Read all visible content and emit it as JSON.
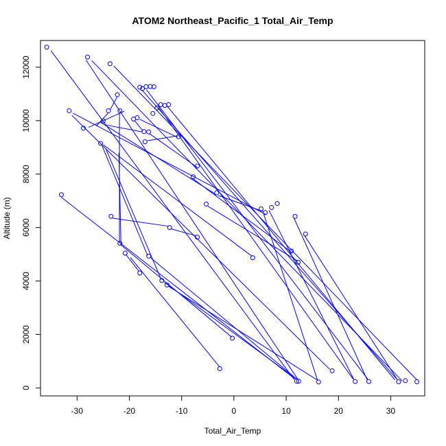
{
  "chart_data": {
    "type": "scatter",
    "title": "ATOM2 Northeast_Pacific_1 Total_Air_Temp",
    "xlabel": "Total_Air_Temp",
    "ylabel": "Altitude (m)",
    "xlim": [
      -37,
      36.5
    ],
    "ylim": [
      -300,
      13000
    ],
    "x_ticks": [
      -30,
      -20,
      -10,
      0,
      10,
      20,
      30
    ],
    "x_tick_labels": [
      "-30",
      "-20",
      "-10",
      "0",
      "10",
      "20",
      "30"
    ],
    "y_ticks": [
      0,
      2000,
      4000,
      6000,
      8000,
      10000,
      12000
    ],
    "y_tick_labels": [
      "0",
      "2000",
      "4000",
      "6000",
      "8000",
      "10000",
      "12000"
    ],
    "series_color": "#0000ff",
    "grid": false,
    "legend": "none",
    "points": [
      {
        "x": -35.8,
        "y": 12750
      },
      {
        "x": -28.0,
        "y": 12380
      },
      {
        "x": -23.7,
        "y": 12130
      },
      {
        "x": -18.0,
        "y": 11250
      },
      {
        "x": -17.5,
        "y": 11200
      },
      {
        "x": -16.8,
        "y": 11270
      },
      {
        "x": -16.0,
        "y": 11280
      },
      {
        "x": -15.3,
        "y": 11270
      },
      {
        "x": -14.0,
        "y": 10600
      },
      {
        "x": -13.2,
        "y": 10570
      },
      {
        "x": -12.5,
        "y": 10600
      },
      {
        "x": -14.7,
        "y": 10480
      },
      {
        "x": -15.5,
        "y": 10270
      },
      {
        "x": -22.3,
        "y": 10970
      },
      {
        "x": -21.8,
        "y": 10370
      },
      {
        "x": -24.0,
        "y": 10370
      },
      {
        "x": -31.5,
        "y": 10370
      },
      {
        "x": -18.5,
        "y": 10110
      },
      {
        "x": -19.2,
        "y": 10060
      },
      {
        "x": -25.0,
        "y": 9990
      },
      {
        "x": -28.8,
        "y": 9720
      },
      {
        "x": -17.2,
        "y": 9590
      },
      {
        "x": -16.3,
        "y": 9580
      },
      {
        "x": -10.6,
        "y": 9400
      },
      {
        "x": -17.0,
        "y": 9210
      },
      {
        "x": -25.5,
        "y": 9150
      },
      {
        "x": -7.0,
        "y": 8300
      },
      {
        "x": -7.8,
        "y": 7900
      },
      {
        "x": -3.3,
        "y": 7300
      },
      {
        "x": -5.3,
        "y": 6880
      },
      {
        "x": 8.3,
        "y": 6900
      },
      {
        "x": 7.2,
        "y": 6750
      },
      {
        "x": 5.2,
        "y": 6700
      },
      {
        "x": 6.0,
        "y": 6560
      },
      {
        "x": 11.7,
        "y": 6420
      },
      {
        "x": -33.0,
        "y": 7230
      },
      {
        "x": -23.5,
        "y": 6420
      },
      {
        "x": -12.3,
        "y": 6000
      },
      {
        "x": 13.7,
        "y": 5760
      },
      {
        "x": -7.0,
        "y": 5640
      },
      {
        "x": -21.8,
        "y": 5410
      },
      {
        "x": 11.0,
        "y": 5120
      },
      {
        "x": -20.8,
        "y": 5040
      },
      {
        "x": -16.3,
        "y": 4930
      },
      {
        "x": 3.6,
        "y": 4870
      },
      {
        "x": 12.3,
        "y": 4700
      },
      {
        "x": -18.0,
        "y": 4300
      },
      {
        "x": -13.8,
        "y": 4020
      },
      {
        "x": -12.8,
        "y": 3850
      },
      {
        "x": -0.3,
        "y": 1860
      },
      {
        "x": -2.7,
        "y": 720
      },
      {
        "x": 18.8,
        "y": 640
      },
      {
        "x": 12.0,
        "y": 250
      },
      {
        "x": 12.4,
        "y": 250
      },
      {
        "x": 16.2,
        "y": 220
      },
      {
        "x": 23.2,
        "y": 240
      },
      {
        "x": 25.8,
        "y": 240
      },
      {
        "x": 31.5,
        "y": 230
      },
      {
        "x": 32.8,
        "y": 270
      },
      {
        "x": 35.0,
        "y": 230
      }
    ],
    "segments": [
      [
        [
          -35.0,
          12620
        ],
        [
          11.5,
          320
        ]
      ],
      [
        [
          -27.2,
          12250
        ],
        [
          32.2,
          260
        ]
      ],
      [
        [
          -23.0,
          12050
        ],
        [
          35.0,
          300
        ]
      ],
      [
        [
          -28.3,
          12270
        ],
        [
          12.2,
          330
        ]
      ],
      [
        [
          -17.6,
          11150
        ],
        [
          31.2,
          320
        ]
      ],
      [
        [
          -16.7,
          11150
        ],
        [
          25.6,
          330
        ]
      ],
      [
        [
          -14.4,
          10500
        ],
        [
          22.8,
          330
        ]
      ],
      [
        [
          -12.8,
          10550
        ],
        [
          30.8,
          300
        ]
      ],
      [
        [
          -22.3,
          10900
        ],
        [
          -23.7,
          10400
        ]
      ],
      [
        [
          -21.9,
          10300
        ],
        [
          -21.9,
          5450
        ]
      ],
      [
        [
          -24.0,
          10300
        ],
        [
          -26.3,
          9800
        ]
      ],
      [
        [
          -30.8,
          10280
        ],
        [
          6.2,
          6480
        ]
      ],
      [
        [
          -31.0,
          10200
        ],
        [
          18.3,
          700
        ]
      ],
      [
        [
          -25.6,
          9950
        ],
        [
          -3.5,
          7250
        ]
      ],
      [
        [
          -18.0,
          10050
        ],
        [
          -10.8,
          9380
        ]
      ],
      [
        [
          -19.0,
          10000
        ],
        [
          -17.4,
          9620
        ]
      ],
      [
        [
          -27.8,
          9750
        ],
        [
          -21.0,
          10350
        ]
      ],
      [
        [
          -16.5,
          9250
        ],
        [
          -10.8,
          9430
        ]
      ],
      [
        [
          -24.8,
          9850
        ],
        [
          -17.5,
          9580
        ]
      ],
      [
        [
          -16.2,
          9520
        ],
        [
          -7.0,
          8250
        ]
      ],
      [
        [
          -25.2,
          9050
        ],
        [
          -16.5,
          4950
        ]
      ],
      [
        [
          -25.0,
          9100
        ],
        [
          3.5,
          4920
        ]
      ],
      [
        [
          -24.5,
          8950
        ],
        [
          -13.9,
          4050
        ]
      ],
      [
        [
          -22.0,
          8800
        ],
        [
          -21.6,
          5350
        ]
      ],
      [
        [
          -8.0,
          7850
        ],
        [
          11.2,
          5050
        ]
      ],
      [
        [
          -5.0,
          6800
        ],
        [
          12.2,
          4750
        ]
      ],
      [
        [
          -3.0,
          7200
        ],
        [
          5.6,
          6600
        ]
      ],
      [
        [
          5.7,
          6500
        ],
        [
          16.0,
          280
        ]
      ],
      [
        [
          6.7,
          6650
        ],
        [
          23.0,
          290
        ]
      ],
      [
        [
          11.5,
          6350
        ],
        [
          25.5,
          300
        ]
      ],
      [
        [
          13.5,
          5700
        ],
        [
          31.3,
          300
        ]
      ],
      [
        [
          -23.2,
          6350
        ],
        [
          -12.5,
          6050
        ]
      ],
      [
        [
          -12.0,
          5950
        ],
        [
          -7.2,
          5690
        ]
      ],
      [
        [
          -33.0,
          7130
        ],
        [
          11.7,
          330
        ]
      ],
      [
        [
          -20.7,
          5000
        ],
        [
          -18.2,
          4370
        ]
      ],
      [
        [
          -16.0,
          4880
        ],
        [
          12.1,
          320
        ]
      ],
      [
        [
          -21.6,
          5350
        ],
        [
          -0.4,
          1900
        ]
      ],
      [
        [
          -19.8,
          4880
        ],
        [
          -2.8,
          800
        ]
      ],
      [
        [
          -13.3,
          3950
        ],
        [
          12.0,
          330
        ]
      ],
      [
        [
          -12.5,
          3800
        ],
        [
          16.0,
          290
        ]
      ]
    ]
  }
}
